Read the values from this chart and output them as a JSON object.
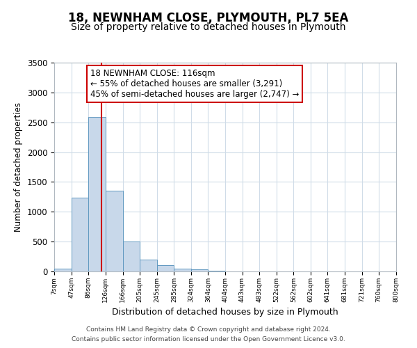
{
  "title": "18, NEWNHAM CLOSE, PLYMOUTH, PL7 5EA",
  "subtitle": "Size of property relative to detached houses in Plymouth",
  "xlabel": "Distribution of detached houses by size in Plymouth",
  "ylabel": "Number of detached properties",
  "footer_line1": "Contains HM Land Registry data © Crown copyright and database right 2024.",
  "footer_line2": "Contains public sector information licensed under the Open Government Licence v3.0.",
  "annotation_line1": "18 NEWNHAM CLOSE: 116sqm",
  "annotation_line2": "← 55% of detached houses are smaller (3,291)",
  "annotation_line3": "45% of semi-detached houses are larger (2,747) →",
  "property_size": 116,
  "bar_edges": [
    7,
    47,
    86,
    126,
    166,
    205,
    245,
    285,
    324,
    364,
    404,
    443,
    483,
    522,
    562,
    602,
    641,
    681,
    721,
    760,
    800
  ],
  "bar_heights": [
    45,
    1240,
    2590,
    1350,
    500,
    200,
    110,
    50,
    30,
    15,
    5,
    5,
    0,
    0,
    0,
    0,
    0,
    0,
    0,
    0
  ],
  "tick_labels": [
    "7sqm",
    "47sqm",
    "86sqm",
    "126sqm",
    "166sqm",
    "205sqm",
    "245sqm",
    "285sqm",
    "324sqm",
    "364sqm",
    "404sqm",
    "443sqm",
    "483sqm",
    "522sqm",
    "562sqm",
    "602sqm",
    "641sqm",
    "681sqm",
    "721sqm",
    "760sqm",
    "800sqm"
  ],
  "bar_color": "#c8d8ea",
  "bar_edge_color": "#6098c0",
  "vline_color": "#cc0000",
  "vline_x": 116,
  "ylim": [
    0,
    3500
  ],
  "yticks": [
    0,
    500,
    1000,
    1500,
    2000,
    2500,
    3000,
    3500
  ],
  "grid_color": "#d0dce8",
  "background_color": "#ffffff",
  "title_fontsize": 12,
  "subtitle_fontsize": 10,
  "annotation_box_edge_color": "#cc0000",
  "annotation_fontsize": 8.5
}
